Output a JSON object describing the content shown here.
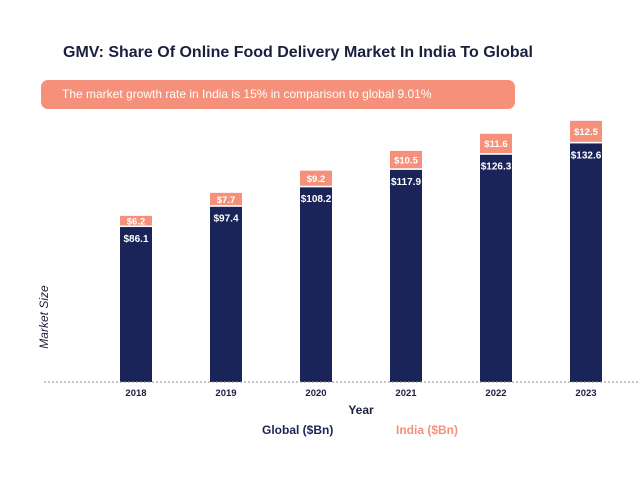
{
  "chart_data": {
    "type": "bar",
    "stacked": true,
    "title": "GMV: Share Of Online Food Delivery Market In India To Global",
    "subtitle": "The market growth rate in India is 15% in comparison to global 9.01%",
    "xlabel": "Year",
    "ylabel": "Market Size",
    "categories": [
      "2018",
      "2019",
      "2020",
      "2021",
      "2022",
      "2023"
    ],
    "series": [
      {
        "name": "Global ($Bn)",
        "color": "#1b2459",
        "values": [
          86.1,
          97.4,
          108.2,
          117.9,
          126.3,
          132.6
        ],
        "labels": [
          "$86.1",
          "$97.4",
          "$108.2",
          "$117.9",
          "$126.3",
          "$132.6"
        ]
      },
      {
        "name": "India ($Bn)",
        "color": "#f5907a",
        "values": [
          6.2,
          7.7,
          9.2,
          10.5,
          11.6,
          12.5
        ],
        "labels": [
          "$6.2",
          "$7.7",
          "$9.2",
          "$10.5",
          "$11.6",
          "$12.5"
        ]
      }
    ],
    "ylim": [
      0,
      150
    ],
    "grid": false,
    "legend_position": "bottom"
  }
}
